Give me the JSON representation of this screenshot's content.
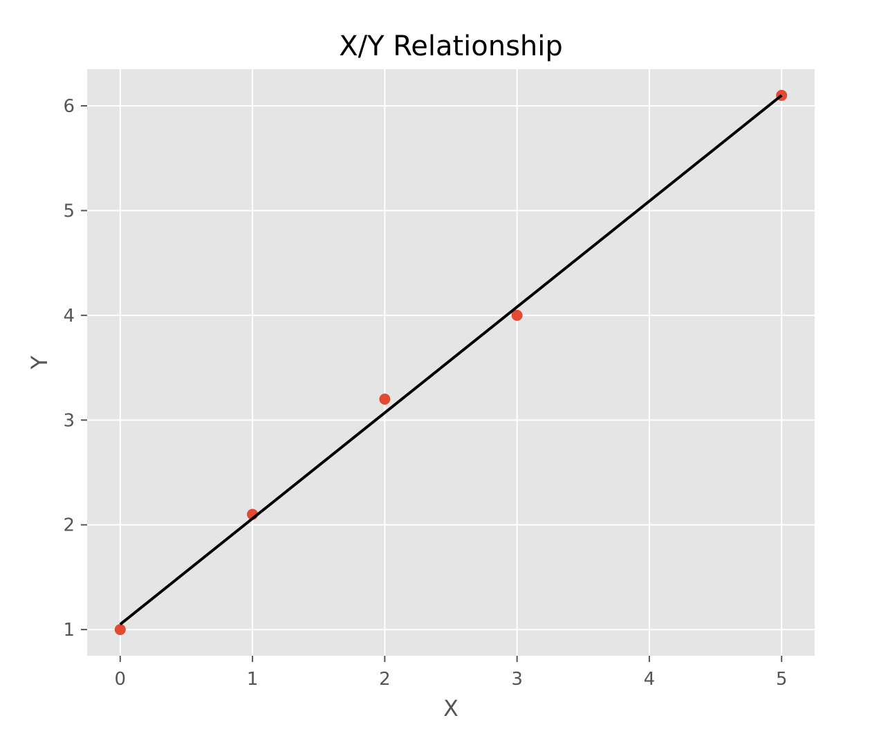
{
  "chart_data": {
    "type": "scatter",
    "title": "X/Y Relationship",
    "xlabel": "X",
    "ylabel": "Y",
    "xlim": [
      -0.25,
      5.25
    ],
    "ylim": [
      0.75,
      6.35
    ],
    "xticks": [
      0,
      1,
      2,
      3,
      4,
      5
    ],
    "yticks": [
      1,
      2,
      3,
      4,
      5,
      6
    ],
    "grid": true,
    "series": [
      {
        "type": "scatter",
        "x": [
          0,
          1,
          2,
          3,
          5
        ],
        "y": [
          1.0,
          2.1,
          3.2,
          4.0,
          6.1
        ],
        "color": "#E24A33"
      },
      {
        "type": "line",
        "x": [
          0,
          5
        ],
        "y": [
          1.05,
          6.1
        ],
        "color": "#000000"
      }
    ],
    "plot_background": "#E5E5E5"
  }
}
